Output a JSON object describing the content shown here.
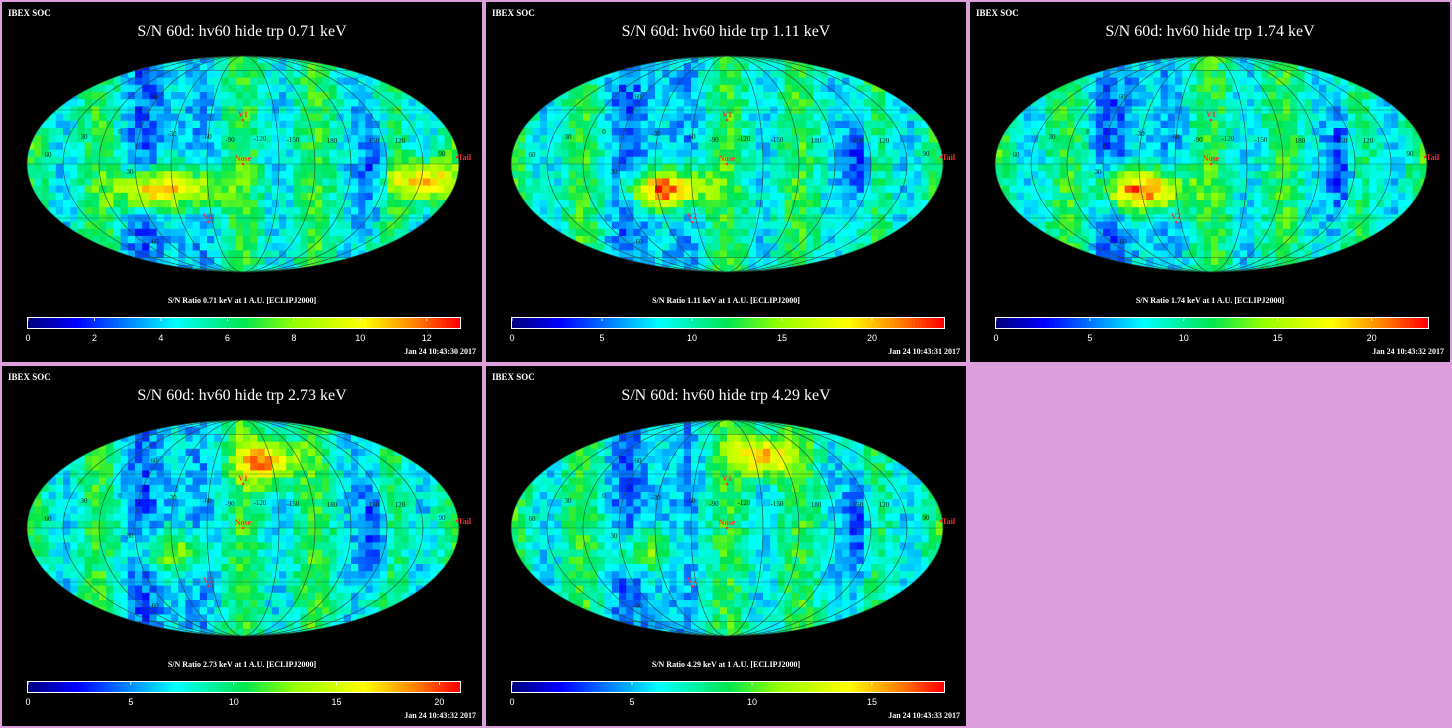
{
  "colors": {
    "page_background": "#dc9fdc",
    "panel_background": "#000000",
    "marker": "#ff3030"
  },
  "chart_data": [
    {
      "type": "heatmap",
      "header": "IBEX SOC",
      "title": "S/N  60d: hv60 hide trp 0.71 keV",
      "colorbar_label": "S/N Ratio 0.71 keV at 1 A.U. [ECLIPJ2000]",
      "timestamp": "Jan 24 10:43:30 2017",
      "colorbar_range": [
        0,
        13
      ],
      "colorbar_ticks": [
        "0",
        "2",
        "4",
        "6",
        "8",
        "10",
        "12"
      ],
      "colorbar_tick_values": [
        0,
        2,
        4,
        6,
        8,
        10,
        12
      ],
      "longitude_labels": [
        "60",
        "30",
        "0",
        "-30",
        "-60",
        "-90",
        "-120",
        "-150",
        "180",
        "150",
        "120",
        "90"
      ],
      "latitude_labels": [
        "60",
        "-60",
        "30"
      ],
      "markers": [
        "V1",
        "V2",
        "Nose",
        "Tail"
      ],
      "hot_spots": [
        {
          "lon": -80,
          "lat": -22,
          "value": 12.5
        },
        {
          "lon": 150,
          "lat": -15,
          "value": 12
        },
        {
          "lon": -40,
          "lat": -20,
          "value": 10.5
        }
      ]
    },
    {
      "type": "heatmap",
      "header": "IBEX SOC",
      "title": "S/N  60d: hv60 hide trp 1.11 keV",
      "colorbar_label": "S/N Ratio 1.11 keV at 1 A.U. [ECLIPJ2000]",
      "timestamp": "Jan 24 10:43:31 2017",
      "colorbar_range": [
        0,
        24
      ],
      "colorbar_ticks": [
        "0",
        "5",
        "10",
        "15",
        "20"
      ],
      "colorbar_tick_values": [
        0,
        5,
        10,
        15,
        20
      ],
      "longitude_labels": [
        "60",
        "30",
        "0",
        "-30",
        "-60",
        "-90",
        "-120",
        "-150",
        "180",
        "150",
        "120",
        "90"
      ],
      "latitude_labels": [
        "60",
        "-60",
        "30"
      ],
      "markers": [
        "V1",
        "V2",
        "Nose",
        "Tail"
      ],
      "hot_spots": [
        {
          "lon": -60,
          "lat": -22,
          "value": 21
        },
        {
          "lon": -35,
          "lat": -20,
          "value": 18
        }
      ]
    },
    {
      "type": "heatmap",
      "header": "IBEX SOC",
      "title": "S/N  60d: hv60 hide trp 1.74 keV",
      "colorbar_label": "S/N Ratio 1.74 keV at 1 A.U. [ECLIPJ2000]",
      "timestamp": "Jan 24 10:43:32 2017",
      "colorbar_range": [
        0,
        23
      ],
      "colorbar_ticks": [
        "0",
        "5",
        "10",
        "15",
        "20"
      ],
      "colorbar_tick_values": [
        0,
        5,
        10,
        15,
        20
      ],
      "longitude_labels": [
        "60",
        "30",
        "0",
        "-30",
        "-60",
        "-90",
        "-120",
        "-150",
        "180",
        "150",
        "120",
        "90"
      ],
      "latitude_labels": [
        "60",
        "-60",
        "30"
      ],
      "markers": [
        "V1",
        "V2",
        "Nose",
        "Tail"
      ],
      "hot_spots": [
        {
          "lon": -70,
          "lat": -22,
          "value": 21
        },
        {
          "lon": -40,
          "lat": -22,
          "value": 19
        }
      ]
    },
    {
      "type": "heatmap",
      "header": "IBEX SOC",
      "title": "S/N  60d: hv60 hide trp 2.73 keV",
      "colorbar_label": "S/N Ratio 2.73 keV at 1 A.U. [ECLIPJ2000]",
      "timestamp": "Jan 24 10:43:32 2017",
      "colorbar_range": [
        0,
        21
      ],
      "colorbar_ticks": [
        "0",
        "5",
        "10",
        "15",
        "20"
      ],
      "colorbar_tick_values": [
        0,
        5,
        10,
        15,
        20
      ],
      "longitude_labels": [
        "60",
        "30",
        "0",
        "-30",
        "-60",
        "-90",
        "-120",
        "-150",
        "180",
        "150",
        "120",
        "90"
      ],
      "latitude_labels": [
        "60",
        "-60",
        "30"
      ],
      "markers": [
        "V1",
        "V2",
        "Nose",
        "Tail"
      ],
      "hot_spots": [
        {
          "lon": 20,
          "lat": 55,
          "value": 20
        },
        {
          "lon": -60,
          "lat": -20,
          "value": 15
        }
      ]
    },
    {
      "type": "heatmap",
      "header": "IBEX SOC",
      "title": "S/N  60d: hv60 hide trp 4.29 keV",
      "colorbar_label": "S/N Ratio 4.29 keV at 1 A.U. [ECLIPJ2000]",
      "timestamp": "Jan 24 10:43:33 2017",
      "colorbar_range": [
        0,
        18
      ],
      "colorbar_ticks": [
        "0",
        "5",
        "10",
        "15"
      ],
      "colorbar_tick_values": [
        0,
        5,
        10,
        15
      ],
      "longitude_labels": [
        "60",
        "30",
        "0",
        "-30",
        "-60",
        "-90",
        "-120",
        "-150",
        "180",
        "150",
        "120",
        "90"
      ],
      "latitude_labels": [
        "60",
        "-60",
        "30"
      ],
      "markers": [
        "V1",
        "V2",
        "Nose",
        "Tail"
      ],
      "hot_spots": [
        {
          "lon": 30,
          "lat": 60,
          "value": 17
        },
        {
          "lon": -70,
          "lat": -20,
          "value": 13
        }
      ]
    }
  ]
}
